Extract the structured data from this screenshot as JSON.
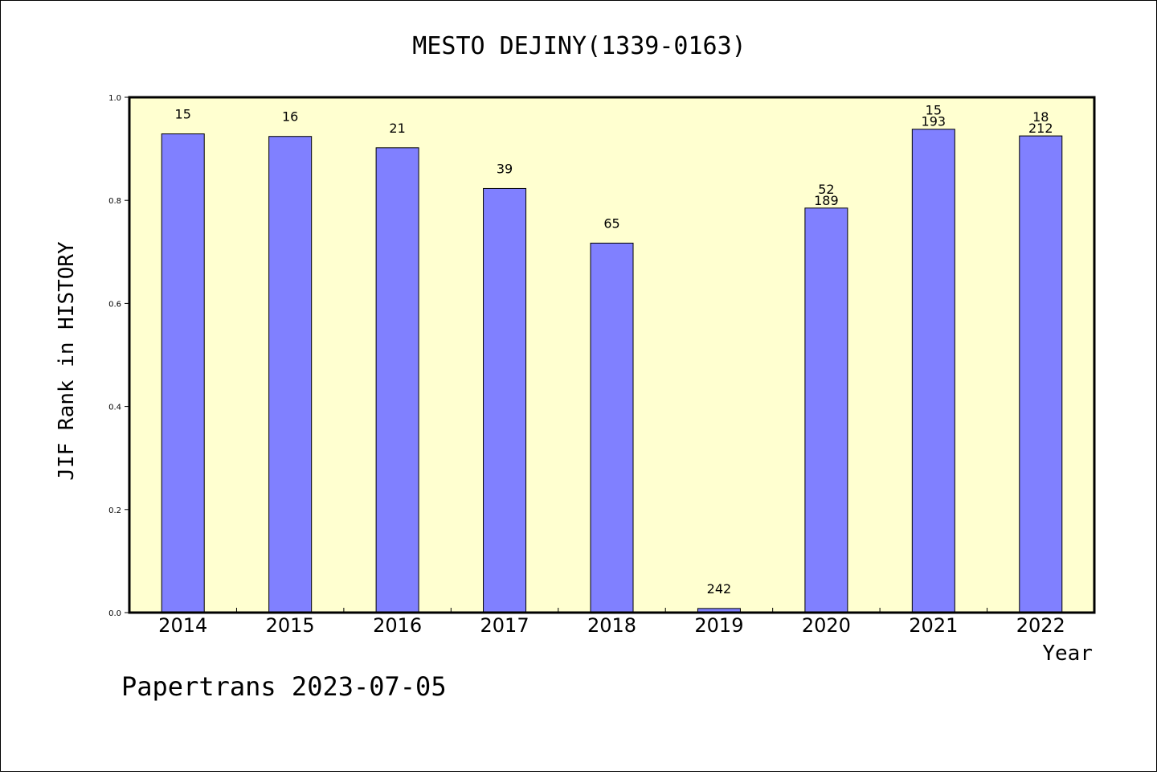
{
  "chart_data": {
    "type": "bar",
    "title": "MESTO DEJINY(1339-0163)",
    "xlabel": "Year",
    "ylabel": "JIF Rank in HISTORY",
    "ylim": [
      0,
      1
    ],
    "yticks": [
      "0.0",
      "0.2",
      "0.4",
      "0.6",
      "0.8",
      "1.0"
    ],
    "categories": [
      "2014",
      "2015",
      "2016",
      "2017",
      "2018",
      "2019",
      "2020",
      "2021",
      "2022"
    ],
    "values": [
      0.929,
      0.924,
      0.902,
      0.823,
      0.717,
      0.008,
      0.785,
      0.938,
      0.925
    ],
    "data_labels": [
      [
        "15"
      ],
      [
        "16"
      ],
      [
        "21"
      ],
      [
        "39"
      ],
      [
        "65"
      ],
      [
        "242"
      ],
      [
        "52",
        "189"
      ],
      [
        "15",
        "193"
      ],
      [
        "18",
        "212"
      ]
    ],
    "bar_color": "#8080ff",
    "plot_background": "#ffffd0",
    "grid": false,
    "legend": "none"
  },
  "footer": {
    "credit": "Papertrans 2023-07-05"
  }
}
